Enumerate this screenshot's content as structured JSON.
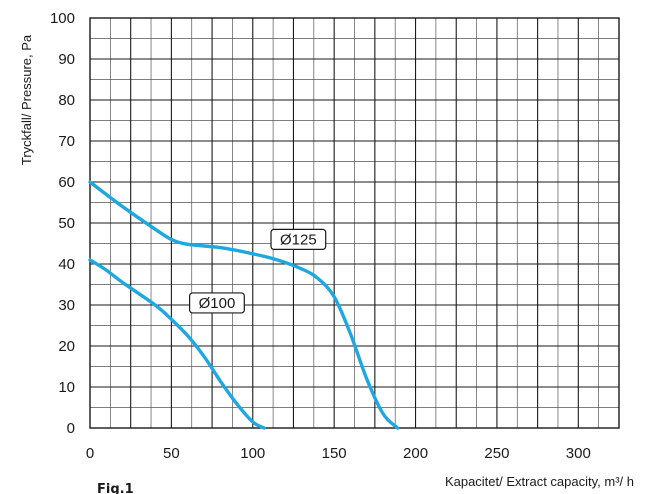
{
  "figure_label": "Fig.1",
  "chart_data": {
    "type": "line",
    "xlabel": "Kapacitet/ Extract capacity, m³/ h",
    "ylabel": "Tryckfall/ Pressure, Pa",
    "xlim": [
      0,
      325
    ],
    "ylim": [
      0,
      100
    ],
    "x_ticks": [
      "0",
      "50",
      "100",
      "150",
      "200",
      "250",
      "300"
    ],
    "y_ticks": [
      "0",
      "10",
      "20",
      "30",
      "40",
      "50",
      "60",
      "70",
      "80",
      "90",
      "100"
    ],
    "x_minor_step": 12.5,
    "y_minor_step": 5,
    "grid": true,
    "series": [
      {
        "name": "Ø125",
        "color": "#1fa8df",
        "label_at": [
          128,
          46
        ],
        "points": [
          [
            0,
            60
          ],
          [
            20,
            54
          ],
          [
            40,
            48.5
          ],
          [
            50,
            46
          ],
          [
            60,
            44.8
          ],
          [
            80,
            44
          ],
          [
            100,
            42.5
          ],
          [
            115,
            41
          ],
          [
            130,
            38.8
          ],
          [
            140,
            36.5
          ],
          [
            150,
            32
          ],
          [
            160,
            23
          ],
          [
            170,
            12
          ],
          [
            180,
            3.5
          ],
          [
            189,
            0
          ]
        ]
      },
      {
        "name": "Ø100",
        "color": "#1fa8df",
        "label_at": [
          78,
          30.5
        ],
        "points": [
          [
            0,
            41
          ],
          [
            10,
            38.5
          ],
          [
            20,
            35.5
          ],
          [
            40,
            30
          ],
          [
            50,
            26.5
          ],
          [
            60,
            22.5
          ],
          [
            70,
            17.5
          ],
          [
            80,
            11.5
          ],
          [
            90,
            6
          ],
          [
            100,
            1.5
          ],
          [
            107,
            0
          ]
        ]
      }
    ]
  }
}
